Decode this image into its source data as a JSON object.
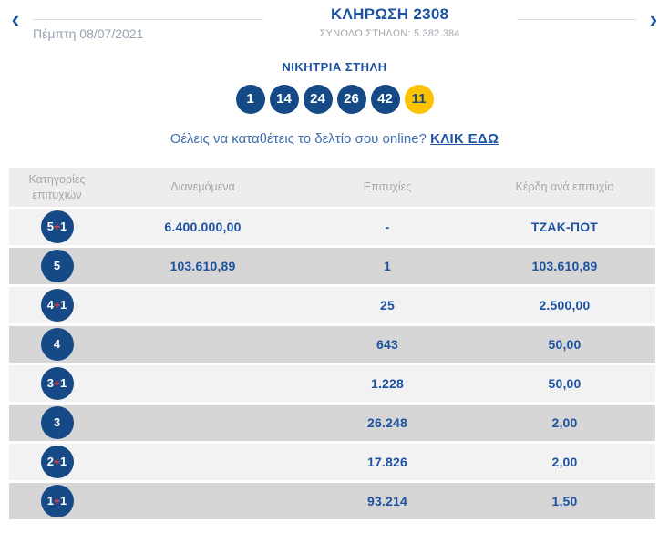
{
  "header": {
    "prev_icon": "‹",
    "next_icon": "›",
    "date": "Πέμπτη 08/07/2021",
    "title": "ΚΛΗΡΩΣΗ 2308",
    "subtitle": "ΣΥΝΟΛΟ ΣΤΗΛΩΝ: 5.382.384"
  },
  "winning": {
    "label": "ΝΙΚΗΤΡΙΑ ΣΤΗΛΗ",
    "numbers": [
      "1",
      "14",
      "24",
      "26",
      "42"
    ],
    "joker": "11"
  },
  "cta": {
    "text": "Θέλεις να καταθέτεις το δελτίο σου online?",
    "link": "ΚΛΙΚ ΕΔΩ"
  },
  "table": {
    "headers": [
      "Κατηγορίες επιτυχιών",
      "Διανεμόμενα",
      "Επιτυχίες",
      "Κέρδη ανά επιτυχία"
    ],
    "rows": [
      {
        "category": "5+1",
        "distributed": "6.400.000,00",
        "winners": "-",
        "prize": "ΤΖΑΚ-ΠΟΤ"
      },
      {
        "category": "5",
        "distributed": "103.610,89",
        "winners": "1",
        "prize": "103.610,89"
      },
      {
        "category": "4+1",
        "distributed": "",
        "winners": "25",
        "prize": "2.500,00"
      },
      {
        "category": "4",
        "distributed": "",
        "winners": "643",
        "prize": "50,00"
      },
      {
        "category": "3+1",
        "distributed": "",
        "winners": "1.228",
        "prize": "50,00"
      },
      {
        "category": "3",
        "distributed": "",
        "winners": "26.248",
        "prize": "2,00"
      },
      {
        "category": "2+1",
        "distributed": "",
        "winners": "17.826",
        "prize": "2,00"
      },
      {
        "category": "1+1",
        "distributed": "",
        "winners": "93.214",
        "prize": "1,50"
      }
    ]
  },
  "colors": {
    "brand_blue": "#1d52a0",
    "ball_blue": "#164a86",
    "joker_yellow": "#fcc400",
    "plus_red": "#e84a4a",
    "row_light": "#f2f2f2",
    "row_dark": "#d6d6d6",
    "header_bg": "#ededed"
  }
}
